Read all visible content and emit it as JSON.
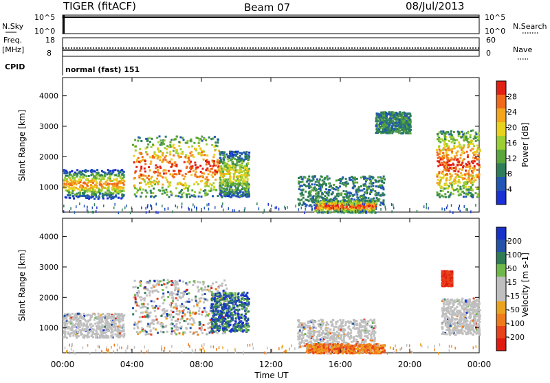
{
  "header": {
    "title": "TIGER (fitACF)",
    "beam": "Beam 07",
    "date": "08/Jul/2013"
  },
  "top_panels": {
    "nsky_label": "N.Sky",
    "nsky_ticks": [
      "10^5",
      "10^0"
    ],
    "nsearch_label": "N.Search",
    "nsearch_ticks": [
      "10^5",
      "10^0"
    ],
    "freq_label": "Freq.",
    "freq_unit": "[MHz]",
    "freq_ticks": [
      "18",
      "8"
    ],
    "nave_label": "Nave",
    "nave_ticks": [
      "60",
      "0"
    ],
    "cpid_label": "CPID",
    "cpid_value": "normal (fast) 151"
  },
  "colors": {
    "power": [
      "#1a2fd6",
      "#2156b5",
      "#2e7e5a",
      "#5aa63a",
      "#9ccf33",
      "#e8d21e",
      "#f3a51c",
      "#ef6a1a",
      "#e32113"
    ],
    "velocity": [
      "#1731c9",
      "#2352a8",
      "#2f7b56",
      "#6fb94a",
      "#bfbfbf",
      "#bfbfbf",
      "#eaa21f",
      "#ef7a1c",
      "#e8421a",
      "#e11a10"
    ]
  },
  "chart_data": [
    {
      "type": "heatmap",
      "name": "power",
      "ylabel": "Slant Range [km]",
      "ylim": [
        180,
        4600
      ],
      "yticks": [
        1000,
        2000,
        3000,
        4000
      ],
      "xlim": [
        0,
        24
      ],
      "xticks": [
        "00:00",
        "04:00",
        "08:00",
        "12:00",
        "16:00",
        "20:00",
        "00:00"
      ],
      "colorbar": {
        "label": "Power [dB]",
        "range": [
          0,
          32
        ],
        "ticks": [
          "4",
          "8",
          "12",
          "16",
          "20",
          "24",
          "28"
        ]
      },
      "patches": [
        {
          "t": [
            0.0,
            3.5
          ],
          "r": [
            650,
            1600
          ],
          "level": "mixed-low-mid"
        },
        {
          "t": [
            4.0,
            9.0
          ],
          "r": [
            700,
            2700
          ],
          "level": "high"
        },
        {
          "t": [
            9.0,
            10.7
          ],
          "r": [
            700,
            2200
          ],
          "level": "mid"
        },
        {
          "t": [
            13.5,
            18.5
          ],
          "r": [
            380,
            1400
          ],
          "level": "low"
        },
        {
          "t": [
            14.5,
            18.0
          ],
          "r": [
            190,
            600
          ],
          "level": "high"
        },
        {
          "t": [
            18.0,
            20.0
          ],
          "r": [
            2800,
            3500
          ],
          "level": "low"
        },
        {
          "t": [
            21.5,
            24.0
          ],
          "r": [
            700,
            2900
          ],
          "level": "high"
        }
      ]
    },
    {
      "type": "heatmap",
      "name": "velocity",
      "ylabel": "Slant Range [km]",
      "ylim": [
        180,
        4600
      ],
      "yticks": [
        1000,
        2000,
        3000,
        4000
      ],
      "xlim": [
        0,
        24
      ],
      "xticks": [
        "00:00",
        "04:00",
        "08:00",
        "12:00",
        "16:00",
        "20:00",
        "00:00"
      ],
      "xlabel": "Time UT",
      "colorbar": {
        "label": "Velocity [m s-1]",
        "ticks": [
          "200",
          "100",
          "50",
          "15",
          "-15",
          "-50",
          "-100",
          "-200"
        ]
      },
      "patches": [
        {
          "t": [
            0.0,
            3.5
          ],
          "r": [
            700,
            1500
          ],
          "level": "ground-scatter"
        },
        {
          "t": [
            4.0,
            9.5
          ],
          "r": [
            800,
            2600
          ],
          "level": "mixed"
        },
        {
          "t": [
            8.5,
            10.7
          ],
          "r": [
            900,
            2200
          ],
          "level": "positive"
        },
        {
          "t": [
            13.5,
            18.0
          ],
          "r": [
            400,
            1300
          ],
          "level": "ground-scatter"
        },
        {
          "t": [
            14.0,
            18.5
          ],
          "r": [
            190,
            500
          ],
          "level": "negative"
        },
        {
          "t": [
            21.8,
            24.0
          ],
          "r": [
            800,
            2000
          ],
          "level": "ground-scatter"
        },
        {
          "t": [
            21.8,
            22.4
          ],
          "r": [
            2400,
            2900
          ],
          "level": "negative-strong"
        }
      ]
    }
  ]
}
